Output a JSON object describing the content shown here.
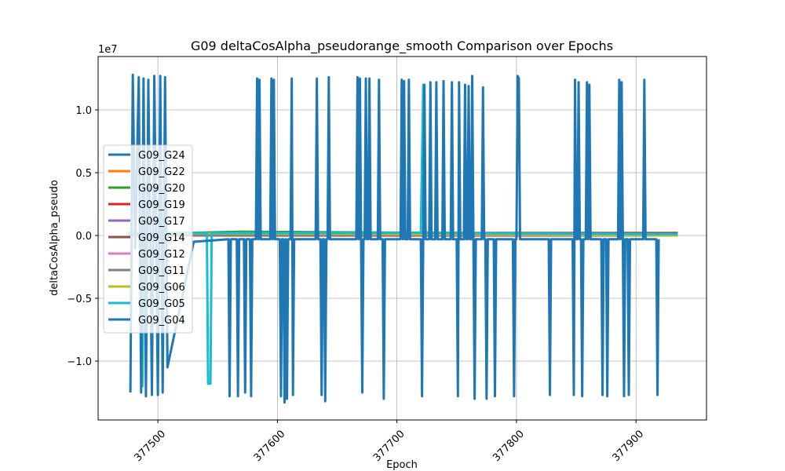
{
  "chart_data": {
    "type": "line",
    "title": "G09 deltaCosAlpha_pseudorange_smooth Comparison over Epochs",
    "x_label": "Epoch",
    "y_label": "deltaCosAlpha_pseudo",
    "y_offset_label": "1e7",
    "xlim": [
      377450,
      377959
    ],
    "ylim": [
      -1.469,
      1.425
    ],
    "xticks": [
      377500,
      377600,
      377700,
      377800,
      377900
    ],
    "yticks": [
      {
        "value": -1,
        "label": "−1.0"
      },
      {
        "value": -0.5,
        "label": "−0.5"
      },
      {
        "value": 0,
        "label": "0.0"
      },
      {
        "value": 0.5,
        "label": "0.5"
      },
      {
        "value": 1,
        "label": "1.0"
      }
    ],
    "grid": true,
    "legend_position": "center left",
    "series": [
      {
        "name": "G09_G24",
        "color": "#1f77b4",
        "x": [
          377475,
          377935
        ],
        "values": [
          0.01,
          0.01
        ]
      },
      {
        "name": "G09_G22",
        "color": "#ff7f0e",
        "x": [
          377475,
          377935
        ],
        "values": [
          0.02,
          0.01
        ]
      },
      {
        "name": "G09_G20",
        "color": "#2ca02c",
        "x": [
          377475,
          377570,
          377935
        ],
        "values": [
          0.01,
          0.03,
          0.01
        ]
      },
      {
        "name": "G09_G19",
        "color": "#d62728",
        "x": [
          377475,
          377935
        ],
        "values": [
          0.0,
          0.0
        ]
      },
      {
        "name": "G09_G17",
        "color": "#9467bd",
        "x": [
          377475,
          377935
        ],
        "values": [
          0.01,
          0.0
        ]
      },
      {
        "name": "G09_G14",
        "color": "#8c564b",
        "x": [
          377475,
          377935
        ],
        "values": [
          0.02,
          0.02
        ]
      },
      {
        "name": "G09_G12",
        "color": "#e377c2",
        "x": [
          377475,
          377935
        ],
        "values": [
          0.01,
          0.01
        ]
      },
      {
        "name": "G09_G11",
        "color": "#7f7f7f",
        "x": [
          377475,
          377935
        ],
        "values": [
          0.0,
          0.01
        ]
      },
      {
        "name": "G09_G06",
        "color": "#bcbd22",
        "x": [
          377475,
          377935
        ],
        "values": [
          0.02,
          0.0
        ]
      },
      {
        "name": "G09_G05",
        "color": "#17becf",
        "x": [
          377475,
          377486,
          377487,
          377488,
          377541,
          377542,
          377544,
          377545,
          377720,
          377722,
          377724,
          377935
        ],
        "values": [
          0.02,
          0.02,
          -1.2,
          0.02,
          0.02,
          -1.18,
          -1.18,
          0.02,
          0.02,
          1.2,
          0.02,
          0.01
        ]
      },
      {
        "name": "G09_G04",
        "color": "#1f77b4",
        "x": [
          377477,
          377479,
          377481,
          377484,
          377486,
          377488,
          377490,
          377492,
          377495,
          377497,
          377500,
          377502,
          377504,
          377506,
          377508,
          377530,
          377559,
          377560,
          377561,
          377566,
          377567,
          377568,
          377572,
          377573,
          377574,
          377577,
          377578,
          377579,
          377582,
          377583,
          377584,
          377585,
          377586,
          377594,
          377595,
          377596,
          377597,
          377598,
          377602,
          377603,
          377604,
          377605,
          377606,
          377607,
          377608,
          377609,
          377611,
          377612,
          377613,
          377614,
          377632,
          377633,
          377634,
          377636,
          377637,
          377638,
          377639,
          377640,
          377641,
          377642,
          377643,
          377644,
          377666,
          377667,
          377668,
          377669,
          377670,
          377671,
          377672,
          377673,
          377674,
          377675,
          377676,
          377677,
          377678,
          377684,
          377685,
          377686,
          377688,
          377689,
          377690,
          377703,
          377704,
          377705,
          377706,
          377707,
          377709,
          377710,
          377711,
          377720,
          377721,
          377722,
          377723,
          377724,
          377727,
          377728,
          377729,
          377732,
          377733,
          377734,
          377738,
          377739,
          377740,
          377745,
          377746,
          377747,
          377750,
          377751,
          377752,
          377753,
          377756,
          377757,
          377758,
          377759,
          377760,
          377761,
          377762,
          377763,
          377764,
          377765,
          377766,
          377771,
          377772,
          377773,
          377774,
          377775,
          377776,
          377781,
          377782,
          377783,
          377797,
          377798,
          377799,
          377800,
          377801,
          377802,
          377803,
          377827,
          377828,
          377829,
          377847,
          377848,
          377849,
          377850,
          377851,
          377852,
          377853,
          377854,
          377855,
          377856,
          377858,
          377859,
          377860,
          377861,
          377862,
          377871,
          377872,
          377873,
          377875,
          377876,
          377877,
          377885,
          377886,
          377887,
          377888,
          377889,
          377890,
          377891,
          377893,
          377894,
          377895,
          377906,
          377907,
          377908,
          377917,
          377918,
          377919
        ],
        "values": [
          -1.25,
          1.28,
          -0.1,
          1.26,
          -1.25,
          1.25,
          -1.28,
          1.24,
          -1.27,
          1.27,
          -1.27,
          1.27,
          -1.25,
          1.26,
          -1.05,
          -0.05,
          -0.03,
          -1.28,
          -0.03,
          -0.03,
          -1.28,
          -0.03,
          -0.03,
          -1.25,
          -0.03,
          -0.03,
          -1.28,
          -0.03,
          -0.03,
          1.25,
          -0.03,
          1.24,
          -0.03,
          -0.03,
          1.25,
          -0.03,
          1.24,
          -0.03,
          -0.03,
          -1.28,
          -0.03,
          -0.03,
          -1.33,
          -0.03,
          -1.3,
          -0.03,
          -0.03,
          1.25,
          -1.27,
          -0.03,
          -0.03,
          1.25,
          -0.03,
          -0.03,
          -1.27,
          -0.03,
          -0.03,
          -1.32,
          -0.03,
          -0.03,
          1.26,
          -0.03,
          -0.03,
          1.26,
          -0.03,
          1.25,
          -0.03,
          -1.25,
          -0.03,
          -0.03,
          1.25,
          -0.03,
          -0.03,
          1.25,
          -0.03,
          -0.03,
          1.24,
          -0.03,
          -0.03,
          -1.3,
          -0.03,
          -0.03,
          1.24,
          -0.03,
          1.23,
          -0.03,
          -0.03,
          1.24,
          -0.03,
          -0.03,
          -1.28,
          -0.03,
          1.2,
          -0.03,
          -0.03,
          1.22,
          -0.03,
          -0.03,
          1.22,
          -0.03,
          -0.03,
          1.23,
          -0.03,
          -0.03,
          1.22,
          -0.03,
          -0.03,
          -1.28,
          1.22,
          -0.03,
          -0.03,
          1.2,
          -0.03,
          -0.03,
          1.19,
          -0.03,
          -0.03,
          1.27,
          -0.03,
          -1.3,
          -0.03,
          -0.03,
          1.18,
          -0.03,
          -0.03,
          -1.3,
          -0.03,
          -0.03,
          -1.28,
          -0.03,
          -0.03,
          -1.28,
          -0.03,
          -0.03,
          1.27,
          1.25,
          -0.03,
          -0.03,
          -1.27,
          -0.03,
          -0.03,
          -1.27,
          1.24,
          -0.03,
          -0.03,
          1.22,
          -0.03,
          -0.03,
          -1.28,
          -0.03,
          -0.03,
          1.22,
          -0.03,
          1.2,
          -0.03,
          -0.03,
          -1.27,
          -0.03,
          -0.03,
          -1.28,
          -0.03,
          -0.03,
          1.24,
          -0.03,
          1.22,
          -0.03,
          -1.28,
          -0.03,
          -0.03,
          -1.27,
          -0.03,
          -0.03,
          1.24,
          -0.03,
          -0.03,
          -1.27,
          -0.03
        ]
      }
    ]
  }
}
